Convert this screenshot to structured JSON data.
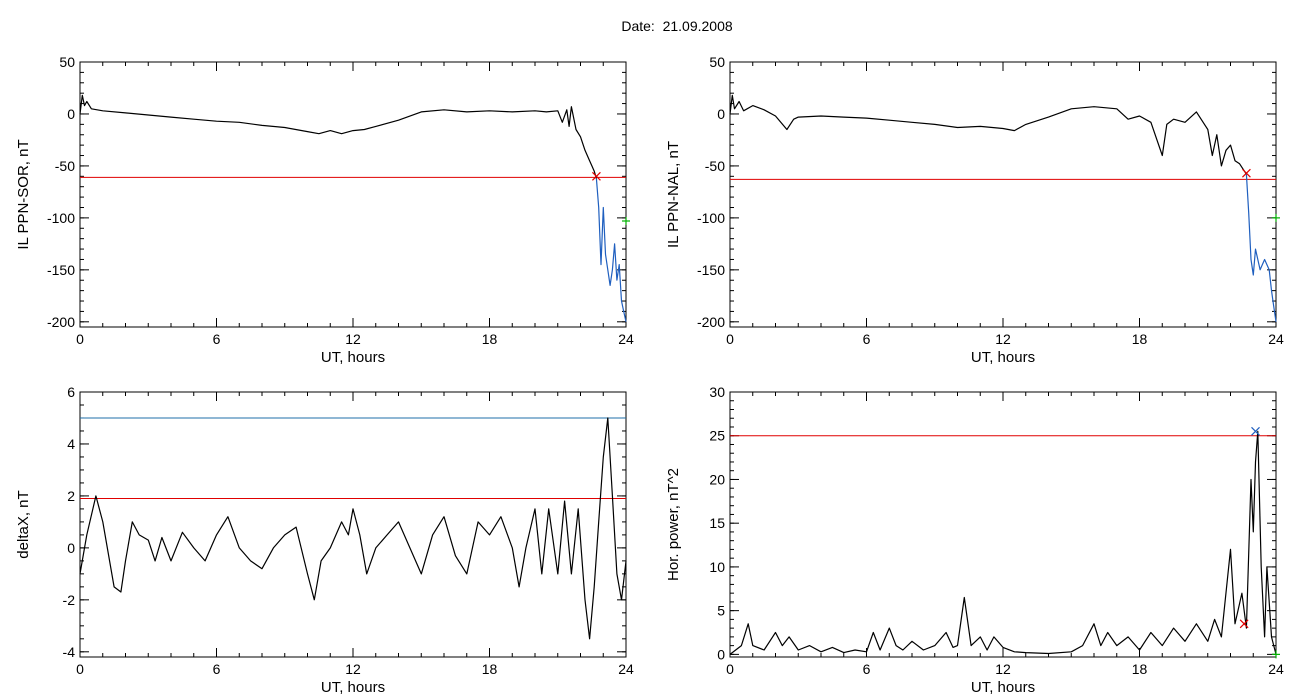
{
  "page": {
    "title": "Date:  21.09.2008"
  },
  "chart_data": [
    {
      "type": "line",
      "ylabel": "IL PPN-SOR, nT",
      "xlabel": "UT, hours",
      "xlim": [
        0,
        24
      ],
      "ylim": [
        -205,
        50
      ],
      "xticks": [
        0,
        6,
        12,
        18,
        24
      ],
      "yticks": [
        -200,
        -150,
        -100,
        -50,
        0,
        50
      ],
      "x_minor_step": 1,
      "y_minor_step": 10,
      "series": [
        {
          "color": "#000000",
          "points": [
            [
              0,
              0
            ],
            [
              0.1,
              18
            ],
            [
              0.2,
              8
            ],
            [
              0.3,
              12
            ],
            [
              0.5,
              5
            ],
            [
              1,
              3
            ],
            [
              2,
              1
            ],
            [
              3,
              -1
            ],
            [
              4,
              -3
            ],
            [
              5,
              -5
            ],
            [
              6,
              -7
            ],
            [
              7,
              -8
            ],
            [
              8,
              -11
            ],
            [
              9,
              -13
            ],
            [
              10,
              -17
            ],
            [
              10.5,
              -19
            ],
            [
              11,
              -16
            ],
            [
              11.5,
              -19
            ],
            [
              12,
              -16
            ],
            [
              12.5,
              -15
            ],
            [
              13,
              -12
            ],
            [
              14,
              -6
            ],
            [
              15,
              2
            ],
            [
              16,
              4
            ],
            [
              17,
              2
            ],
            [
              18,
              3
            ],
            [
              19,
              2
            ],
            [
              20,
              3
            ],
            [
              20.5,
              2
            ],
            [
              21,
              3
            ],
            [
              21.2,
              -8
            ],
            [
              21.4,
              4
            ],
            [
              21.5,
              -12
            ],
            [
              21.6,
              7
            ],
            [
              21.8,
              -15
            ],
            [
              22,
              -22
            ],
            [
              22.2,
              -35
            ],
            [
              22.4,
              -45
            ],
            [
              22.5,
              -50
            ],
            [
              22.6,
              -55
            ],
            [
              22.7,
              -62
            ]
          ]
        },
        {
          "color": "#1f5fbf",
          "points": [
            [
              22.7,
              -62
            ],
            [
              22.8,
              -90
            ],
            [
              22.9,
              -145
            ],
            [
              23.0,
              -90
            ],
            [
              23.1,
              -135
            ],
            [
              23.2,
              -150
            ],
            [
              23.3,
              -165
            ],
            [
              23.4,
              -150
            ],
            [
              23.5,
              -125
            ],
            [
              23.6,
              -160
            ],
            [
              23.7,
              -145
            ],
            [
              23.8,
              -180
            ],
            [
              23.9,
              -190
            ],
            [
              24,
              -200
            ]
          ]
        }
      ],
      "hlines": [
        {
          "y": -61,
          "color": "#e00000"
        }
      ],
      "markers": [
        {
          "x": 22.7,
          "y": -60,
          "color": "#e00000",
          "symbol": "x"
        },
        {
          "x": 24,
          "y": -103,
          "color": "#00b000",
          "symbol": "+"
        }
      ]
    },
    {
      "type": "line",
      "ylabel": "IL PPN-NAL, nT",
      "xlabel": "UT, hours",
      "xlim": [
        0,
        24
      ],
      "ylim": [
        -205,
        50
      ],
      "xticks": [
        0,
        6,
        12,
        18,
        24
      ],
      "yticks": [
        -200,
        -150,
        -100,
        -50,
        0,
        50
      ],
      "x_minor_step": 1,
      "y_minor_step": 10,
      "series": [
        {
          "color": "#000000",
          "points": [
            [
              0,
              0
            ],
            [
              0.1,
              18
            ],
            [
              0.2,
              5
            ],
            [
              0.4,
              12
            ],
            [
              0.6,
              3
            ],
            [
              1,
              8
            ],
            [
              1.5,
              4
            ],
            [
              2,
              -2
            ],
            [
              2.5,
              -15
            ],
            [
              2.8,
              -5
            ],
            [
              3,
              -3
            ],
            [
              4,
              -2
            ],
            [
              5,
              -3
            ],
            [
              6,
              -4
            ],
            [
              7,
              -6
            ],
            [
              8,
              -8
            ],
            [
              9,
              -10
            ],
            [
              10,
              -13
            ],
            [
              11,
              -12
            ],
            [
              12,
              -14
            ],
            [
              12.5,
              -16
            ],
            [
              13,
              -10
            ],
            [
              14,
              -3
            ],
            [
              15,
              5
            ],
            [
              16,
              7
            ],
            [
              17,
              5
            ],
            [
              17.5,
              -5
            ],
            [
              18,
              -2
            ],
            [
              18.5,
              -8
            ],
            [
              19,
              -40
            ],
            [
              19.2,
              -10
            ],
            [
              19.5,
              -5
            ],
            [
              20,
              -8
            ],
            [
              20.5,
              2
            ],
            [
              21,
              -15
            ],
            [
              21.2,
              -40
            ],
            [
              21.4,
              -20
            ],
            [
              21.6,
              -50
            ],
            [
              21.8,
              -35
            ],
            [
              22,
              -30
            ],
            [
              22.2,
              -45
            ],
            [
              22.4,
              -48
            ],
            [
              22.7,
              -58
            ]
          ]
        },
        {
          "color": "#1f5fbf",
          "points": [
            [
              22.7,
              -58
            ],
            [
              22.8,
              -95
            ],
            [
              22.9,
              -140
            ],
            [
              23.0,
              -155
            ],
            [
              23.1,
              -130
            ],
            [
              23.3,
              -150
            ],
            [
              23.5,
              -140
            ],
            [
              23.7,
              -150
            ],
            [
              23.8,
              -170
            ],
            [
              23.9,
              -185
            ],
            [
              24,
              -200
            ]
          ]
        }
      ],
      "hlines": [
        {
          "y": -63,
          "color": "#e00000"
        }
      ],
      "markers": [
        {
          "x": 22.7,
          "y": -57,
          "color": "#e00000",
          "symbol": "x"
        },
        {
          "x": 24,
          "y": -100,
          "color": "#00b000",
          "symbol": "+"
        }
      ]
    },
    {
      "type": "line",
      "ylabel": "deltaX, nT",
      "xlabel": "UT, hours",
      "xlim": [
        0,
        24
      ],
      "ylim": [
        -4.2,
        6
      ],
      "xticks": [
        0,
        6,
        12,
        18,
        24
      ],
      "yticks": [
        -4,
        -2,
        0,
        2,
        4,
        6
      ],
      "x_minor_step": 1,
      "y_minor_step": 0.5,
      "series": [
        {
          "color": "#000000",
          "points": [
            [
              0,
              -1
            ],
            [
              0.3,
              0.5
            ],
            [
              0.7,
              2
            ],
            [
              1,
              1
            ],
            [
              1.5,
              -1.5
            ],
            [
              1.8,
              -1.7
            ],
            [
              2,
              -0.5
            ],
            [
              2.3,
              1
            ],
            [
              2.6,
              0.5
            ],
            [
              3,
              0.3
            ],
            [
              3.3,
              -0.5
            ],
            [
              3.6,
              0.4
            ],
            [
              4,
              -0.5
            ],
            [
              4.5,
              0.6
            ],
            [
              5,
              0
            ],
            [
              5.5,
              -0.5
            ],
            [
              6,
              0.5
            ],
            [
              6.5,
              1.2
            ],
            [
              7,
              0
            ],
            [
              7.5,
              -0.5
            ],
            [
              8,
              -0.8
            ],
            [
              8.5,
              0
            ],
            [
              9,
              0.5
            ],
            [
              9.5,
              0.8
            ],
            [
              10,
              -1
            ],
            [
              10.3,
              -2
            ],
            [
              10.6,
              -0.5
            ],
            [
              11,
              0
            ],
            [
              11.5,
              1
            ],
            [
              11.8,
              0.5
            ],
            [
              12,
              1.5
            ],
            [
              12.3,
              0.5
            ],
            [
              12.6,
              -1
            ],
            [
              13,
              0
            ],
            [
              13.5,
              0.5
            ],
            [
              14,
              1
            ],
            [
              14.5,
              0
            ],
            [
              15,
              -1
            ],
            [
              15.5,
              0.5
            ],
            [
              16,
              1.2
            ],
            [
              16.5,
              -0.3
            ],
            [
              17,
              -1
            ],
            [
              17.5,
              1
            ],
            [
              18,
              0.5
            ],
            [
              18.5,
              1.2
            ],
            [
              19,
              0
            ],
            [
              19.3,
              -1.5
            ],
            [
              19.6,
              0
            ],
            [
              20,
              1.5
            ],
            [
              20.3,
              -1
            ],
            [
              20.6,
              1.5
            ],
            [
              21,
              -1
            ],
            [
              21.3,
              1.8
            ],
            [
              21.6,
              -1
            ],
            [
              21.9,
              1.5
            ],
            [
              22.2,
              -2
            ],
            [
              22.4,
              -3.5
            ],
            [
              22.6,
              -1.5
            ],
            [
              22.8,
              1
            ],
            [
              23,
              3.5
            ],
            [
              23.2,
              5
            ],
            [
              23.4,
              2
            ],
            [
              23.6,
              -1
            ],
            [
              23.8,
              -2
            ],
            [
              24,
              -0.5
            ]
          ]
        }
      ],
      "hlines": [
        {
          "y": 5,
          "color": "#1f6fa8"
        },
        {
          "y": 1.9,
          "color": "#e00000"
        }
      ],
      "markers": []
    },
    {
      "type": "line",
      "ylabel": "Hor. power, nT^2",
      "xlabel": "UT, hours",
      "xlim": [
        0,
        24
      ],
      "ylim": [
        -0.3,
        30
      ],
      "xticks": [
        0,
        6,
        12,
        18,
        24
      ],
      "yticks": [
        0,
        5,
        10,
        15,
        20,
        25,
        30
      ],
      "x_minor_step": 1,
      "y_minor_step": 1,
      "series": [
        {
          "color": "#000000",
          "points": [
            [
              0,
              0
            ],
            [
              0.5,
              1
            ],
            [
              0.8,
              3.5
            ],
            [
              1,
              1
            ],
            [
              1.5,
              0.5
            ],
            [
              2,
              2.5
            ],
            [
              2.3,
              1
            ],
            [
              2.6,
              2
            ],
            [
              3,
              0.5
            ],
            [
              3.5,
              1
            ],
            [
              4,
              0.3
            ],
            [
              4.5,
              0.8
            ],
            [
              5,
              0.2
            ],
            [
              5.5,
              0.5
            ],
            [
              6,
              0.3
            ],
            [
              6.3,
              2.5
            ],
            [
              6.6,
              0.5
            ],
            [
              7,
              3
            ],
            [
              7.3,
              1
            ],
            [
              7.6,
              0.5
            ],
            [
              8,
              1.5
            ],
            [
              8.5,
              0.5
            ],
            [
              9,
              1
            ],
            [
              9.5,
              2.5
            ],
            [
              9.8,
              0.8
            ],
            [
              10,
              1
            ],
            [
              10.3,
              6.5
            ],
            [
              10.6,
              1
            ],
            [
              11,
              2
            ],
            [
              11.3,
              0.5
            ],
            [
              11.6,
              2
            ],
            [
              12,
              0.8
            ],
            [
              12.5,
              0.3
            ],
            [
              13,
              0.2
            ],
            [
              14,
              0.1
            ],
            [
              15,
              0.3
            ],
            [
              15.5,
              1
            ],
            [
              16,
              3.5
            ],
            [
              16.3,
              1
            ],
            [
              16.6,
              2.5
            ],
            [
              17,
              1
            ],
            [
              17.5,
              2
            ],
            [
              18,
              0.5
            ],
            [
              18.5,
              2.5
            ],
            [
              19,
              1
            ],
            [
              19.5,
              3
            ],
            [
              20,
              1.5
            ],
            [
              20.5,
              3.5
            ],
            [
              21,
              1.5
            ],
            [
              21.3,
              4
            ],
            [
              21.6,
              2
            ],
            [
              22,
              12
            ],
            [
              22.2,
              3.5
            ],
            [
              22.5,
              7
            ],
            [
              22.7,
              3
            ],
            [
              22.9,
              20
            ],
            [
              23.0,
              14
            ],
            [
              23.1,
              22
            ],
            [
              23.2,
              25.5
            ],
            [
              23.35,
              10
            ],
            [
              23.5,
              2
            ],
            [
              23.6,
              10
            ],
            [
              23.8,
              2
            ],
            [
              24,
              0
            ]
          ]
        }
      ],
      "hlines": [
        {
          "y": 25,
          "color": "#e00000"
        }
      ],
      "markers": [
        {
          "x": 22.6,
          "y": 3.5,
          "color": "#e00000",
          "symbol": "x"
        },
        {
          "x": 23.1,
          "y": 25.5,
          "color": "#1f5fbf",
          "symbol": "x"
        },
        {
          "x": 24,
          "y": 0,
          "color": "#00b000",
          "symbol": "+"
        }
      ]
    }
  ]
}
